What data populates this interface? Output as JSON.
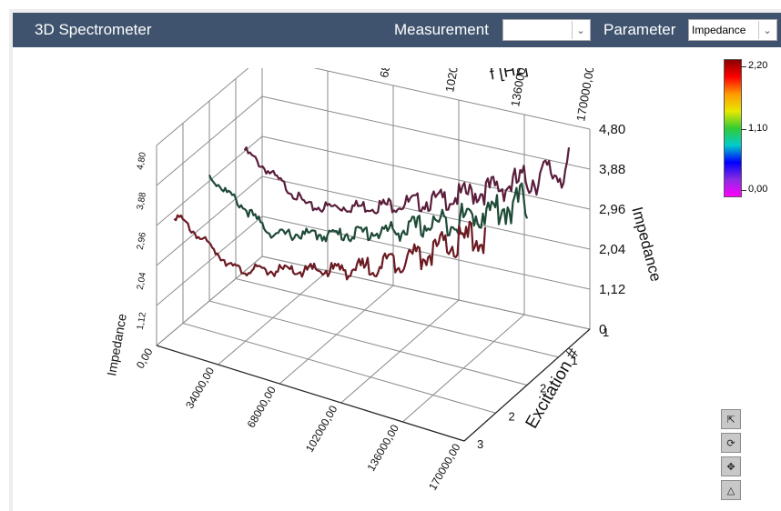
{
  "app": {
    "title": "3D Spectrometer"
  },
  "header": {
    "measurement_label": "Measurement",
    "measurement_value": "",
    "parameter_label": "Parameter",
    "parameter_value": "Impedance"
  },
  "colorbar": {
    "labels": [
      "2,20",
      "1,10",
      "0,00"
    ]
  },
  "chart_data": {
    "type": "line",
    "view": "3d",
    "x_axis": {
      "title": "f [Hz]",
      "ticks": [
        "34000,00",
        "68000,00",
        "102000,00",
        "136000,00",
        "170000,00"
      ]
    },
    "front_x_ticks": [
      "0,00",
      "34000,00",
      "68000,00",
      "102000,00",
      "136000,00",
      "170000,00"
    ],
    "z_axis": {
      "title": "Impedance",
      "ticks": [
        "0",
        "1,12",
        "2,04",
        "2,96",
        "3,88",
        "4,80"
      ],
      "range": [
        0,
        4.8
      ]
    },
    "left_z_ticks": [
      "1,12",
      "2,04",
      "2,96",
      "3,88",
      "4,80"
    ],
    "y_axis": {
      "title": "Excitation #",
      "ticks": [
        "1",
        "1",
        "2",
        "2",
        "3"
      ]
    },
    "series": [
      {
        "excitation": 1,
        "color": "#5a1e3c",
        "x": [
          0,
          34000,
          68000,
          102000,
          136000,
          170000
        ],
        "values": [
          2.9,
          1.9,
          2.3,
          2.8,
          3.5,
          4.3
        ]
      },
      {
        "excitation": 2,
        "color": "#1e4a36",
        "x": [
          0,
          34000,
          68000,
          102000,
          136000,
          170000
        ],
        "values": [
          3.0,
          2.0,
          2.4,
          2.9,
          3.6,
          4.4
        ]
      },
      {
        "excitation": 3,
        "color": "#6b1a22",
        "x": [
          0,
          34000,
          68000,
          102000,
          136000,
          170000
        ],
        "values": [
          2.8,
          1.9,
          2.3,
          2.8,
          3.6,
          4.5
        ]
      }
    ]
  },
  "toolbar": {
    "tools": [
      "zoom-extents-icon",
      "rotate-icon",
      "pan-icon",
      "axis-view-icon"
    ]
  }
}
